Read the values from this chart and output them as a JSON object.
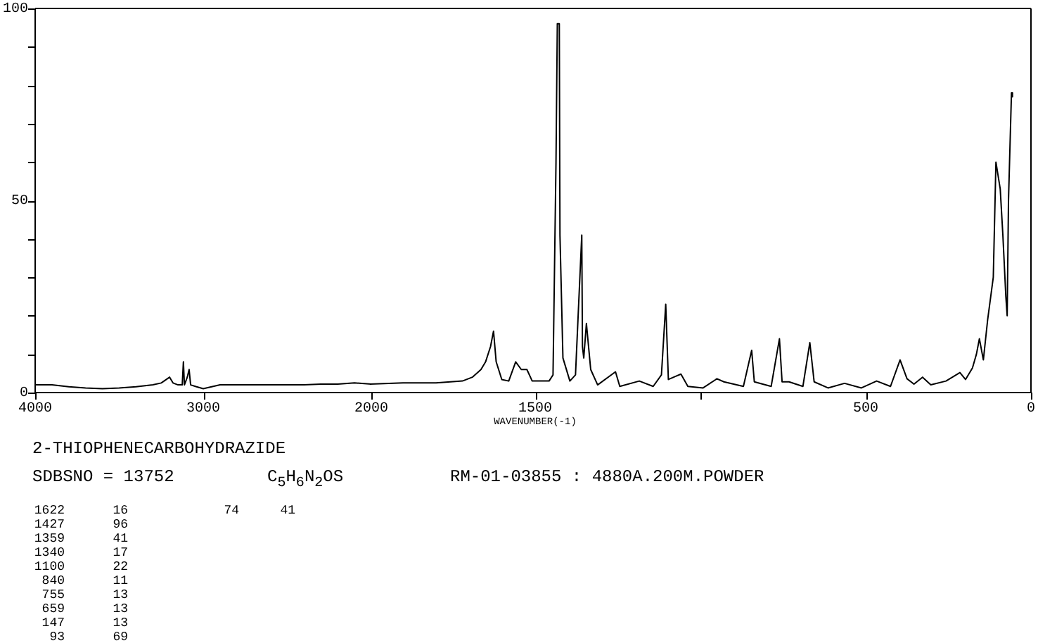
{
  "chart_data": [
    {
      "type": "line",
      "title": "2-THIOPHENECARBOHYDRAZIDE",
      "x": [
        4000,
        3900,
        3800,
        3700,
        3600,
        3500,
        3400,
        3300,
        3250,
        3200,
        3180,
        3150,
        3125,
        3118,
        3112,
        3095,
        3084,
        3075,
        3040,
        3000,
        2950,
        2900,
        2800,
        2700,
        2600,
        2500,
        2400,
        2300,
        2200,
        2100,
        2000
      ],
      "values": [
        2,
        2,
        1.5,
        1.2,
        1,
        1.2,
        1.5,
        2,
        2.5,
        4,
        2.5,
        2,
        2,
        8,
        2,
        4,
        6,
        2,
        1.5,
        1,
        1.5,
        2,
        2,
        2,
        2,
        2,
        2,
        2.2,
        2.2,
        2.5,
        2.2
      ],
      "color": "#000000",
      "xlim": [
        4000,
        2000
      ],
      "xticks": [
        4000,
        3000,
        2000
      ],
      "ylim": [
        0,
        100
      ],
      "yticks": [
        0,
        {
          "value": 10,
          "label": null
        },
        {
          "value": 20,
          "label": null
        },
        {
          "value": 30,
          "label": null
        },
        {
          "value": 40,
          "label": null
        },
        50,
        {
          "value": 60,
          "label": null
        },
        {
          "value": 70,
          "label": null
        },
        {
          "value": 80,
          "label": null
        },
        {
          "value": 90,
          "label": null
        },
        100
      ],
      "annotations": [
        "SDBSNO = 13752",
        "C$_{5}$H$_{6}$N$_{2}$OS",
        "RM-01-03855 : 4880A.200M.POWDER",
        "1622 16",
        "1427 96",
        "1359 41",
        "1340 17",
        "1100 22",
        "840 11",
        "755 13",
        "659 13",
        "147 13",
        "93 69",
        "74 41"
      ]
    },
    {
      "type": "line",
      "xlabel": "WAVENUMBER(-1)",
      "x": [
        2000,
        1900,
        1800,
        1720,
        1690,
        1664,
        1650,
        1635,
        1626,
        1618,
        1601,
        1580,
        1559,
        1542,
        1525,
        1509,
        1458,
        1446,
        1437,
        1433,
        1427,
        1425,
        1416,
        1395,
        1378,
        1370,
        1359,
        1357,
        1353,
        1345,
        1332,
        1311,
        1257,
        1244,
        1185,
        1143,
        1118,
        1105,
        1097,
        1076,
        1059,
        1038,
        992,
        950,
        929,
        870,
        845,
        837,
        786,
        761,
        753,
        732,
        690,
        669,
        656,
        614,
        564,
        513,
        467,
        425,
        396,
        375,
        354,
        328,
        303,
        257,
        215,
        198,
        177,
        165,
        156,
        144,
        131,
        114,
        106,
        93,
        85,
        76,
        72,
        68,
        59,
        56
      ],
      "values": [
        2.2,
        2.5,
        2.5,
        3,
        4,
        6,
        8,
        12,
        16,
        8,
        3.4,
        3,
        8,
        6,
        6,
        3,
        3,
        4.6,
        60,
        96,
        96,
        41,
        9,
        3,
        4.6,
        20,
        41,
        12,
        9,
        18,
        6,
        2,
        5.4,
        1.6,
        3,
        1.6,
        4.6,
        23,
        3.4,
        4.2,
        4.8,
        1.6,
        1.2,
        3.6,
        2.8,
        1.6,
        11,
        2.8,
        1.6,
        14,
        2.8,
        2.8,
        1.6,
        13,
        2.8,
        1.2,
        2.4,
        1.2,
        3,
        1.6,
        8.5,
        3.6,
        2.2,
        4,
        2,
        3,
        5.2,
        3.4,
        6.4,
        10,
        14,
        8.5,
        19,
        30,
        60,
        53,
        41,
        25,
        20,
        50,
        78,
        77
      ],
      "color": "#000000",
      "xlim": [
        2000,
        0
      ],
      "xticks": [
        1500,
        {
          "value": 1000,
          "label": null
        },
        500,
        0
      ],
      "ylim": [
        0,
        100
      ],
      "tick_labels": "x"
    }
  ]
}
